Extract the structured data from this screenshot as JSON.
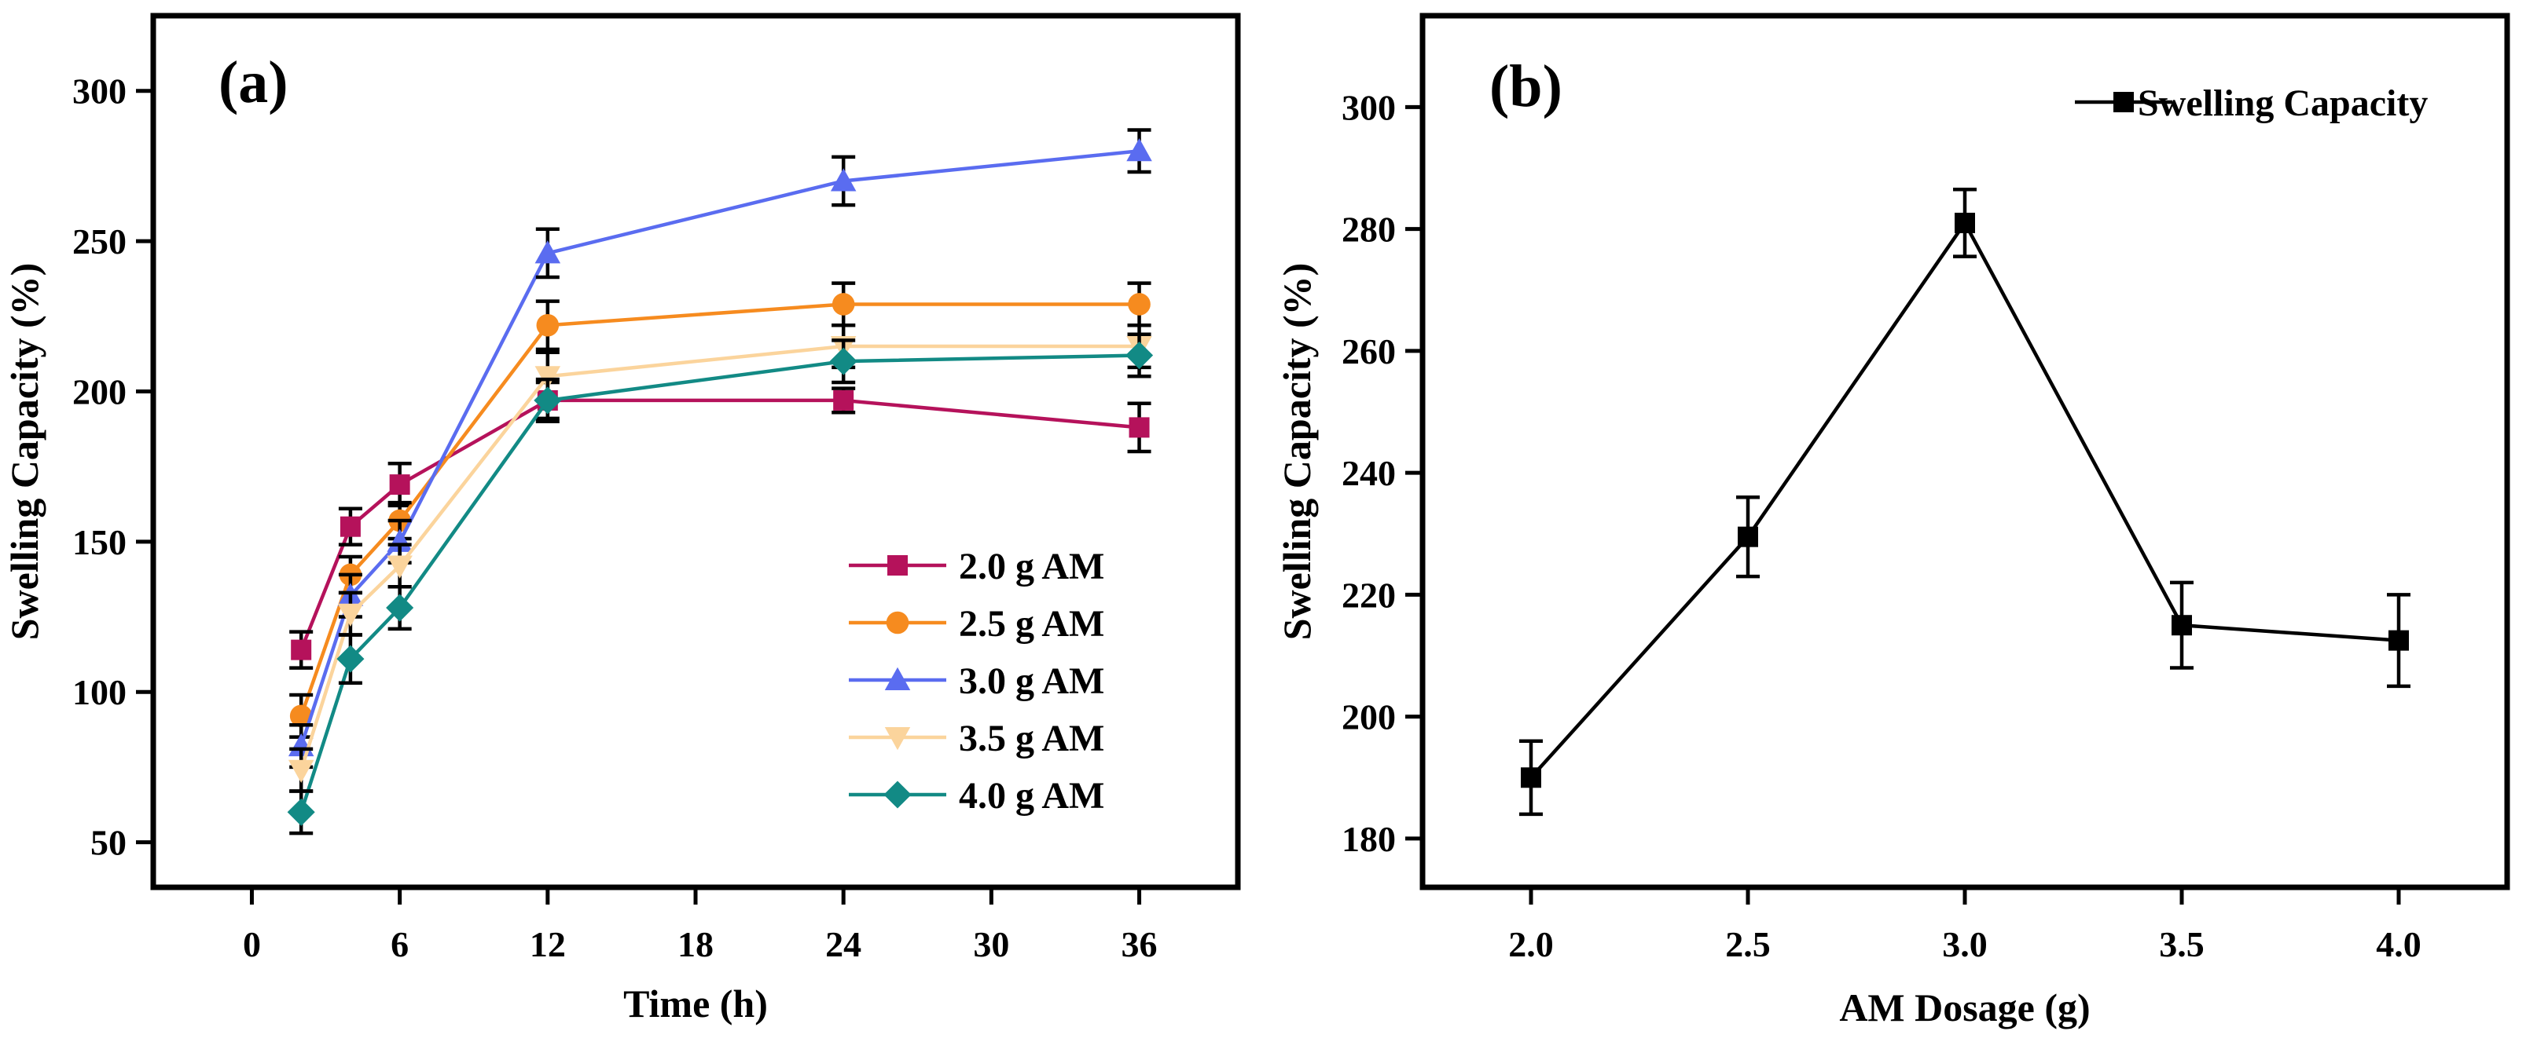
{
  "chart_data": [
    {
      "type": "line",
      "panel_label": "(a)",
      "xlabel": "Time (h)",
      "ylabel": "Swelling Capacity (%)",
      "xlim": [
        -4,
        40
      ],
      "ylim": [
        35,
        325
      ],
      "xticks": [
        0,
        6,
        12,
        18,
        24,
        30,
        36
      ],
      "yticks": [
        50,
        100,
        150,
        200,
        250,
        300
      ],
      "legend_position": "lower-right",
      "x": [
        2,
        4,
        6,
        12,
        24,
        36
      ],
      "series": [
        {
          "name": "2.0 g AM",
          "color": "#b5125b",
          "marker": "square",
          "values": [
            114,
            155,
            169,
            197,
            197,
            188
          ],
          "errors": [
            6,
            6,
            7,
            6,
            4,
            8
          ]
        },
        {
          "name": "2.5 g AM",
          "color": "#f68b1f",
          "marker": "circle",
          "values": [
            92,
            139,
            157,
            222,
            229,
            229
          ],
          "errors": [
            7,
            6,
            6,
            8,
            7,
            7
          ]
        },
        {
          "name": "3.0 g AM",
          "color": "#5a6cf0",
          "marker": "triangle-up",
          "values": [
            82,
            132,
            150,
            246,
            270,
            280
          ],
          "errors": [
            7,
            7,
            7,
            8,
            8,
            7
          ]
        },
        {
          "name": "3.5 g AM",
          "color": "#fbd49c",
          "marker": "triangle-down",
          "values": [
            74,
            126,
            142,
            205,
            215,
            215
          ],
          "errors": [
            7,
            7,
            7,
            8,
            7,
            7
          ]
        },
        {
          "name": "4.0 g AM",
          "color": "#128a85",
          "marker": "diamond",
          "values": [
            60,
            111,
            128,
            197,
            210,
            212
          ],
          "errors": [
            7,
            8,
            7,
            7,
            7,
            7
          ]
        }
      ]
    },
    {
      "type": "line",
      "panel_label": "(b)",
      "xlabel": "AM Dosage (g)",
      "ylabel": "Swelling Capacity (%)",
      "xlim": [
        1.75,
        4.25
      ],
      "ylim": [
        172,
        315
      ],
      "xticks": [
        "2.0",
        "2.5",
        "3.0",
        "3.5",
        "4.0"
      ],
      "yticks": [
        180,
        200,
        220,
        240,
        260,
        280,
        300
      ],
      "legend_position": "top-right",
      "x": [
        2.0,
        2.5,
        3.0,
        3.5,
        4.0
      ],
      "series": [
        {
          "name": "Swelling Capacity",
          "color": "#000000",
          "marker": "square",
          "values": [
            190,
            229.5,
            281,
            215,
            212.5
          ],
          "errors": [
            6,
            6.5,
            5.5,
            7,
            7.5
          ]
        }
      ]
    }
  ]
}
